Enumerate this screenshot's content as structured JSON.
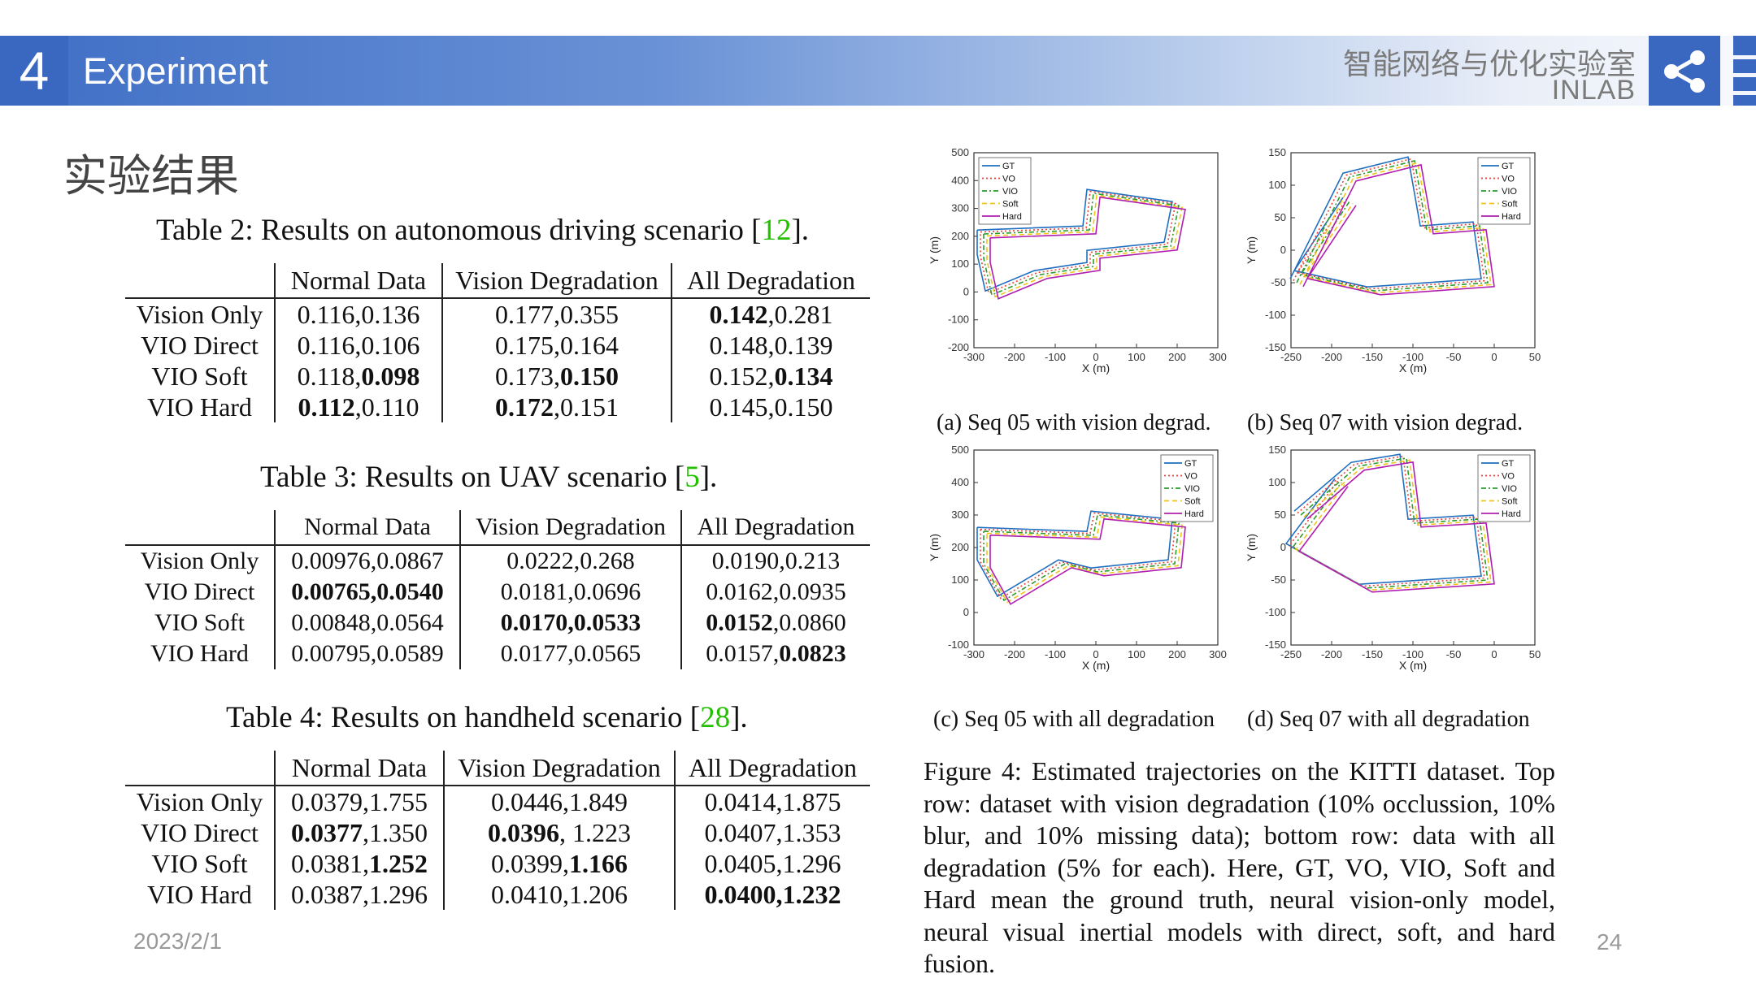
{
  "header": {
    "section_number": "4",
    "section_title": "Experiment",
    "lab_name_cn": "智能网络与优化实验室",
    "lab_name_en": "INLAB",
    "share_icon": "share-icon",
    "accent_color": "#3a67c0"
  },
  "subtitle": "实验结果",
  "tables": [
    {
      "caption_prefix": "Table 2: Results on autonomous driving scenario [",
      "caption_ref": "12",
      "caption_suffix": "].",
      "columns": [
        "",
        "Normal Data",
        "Vision Degradation",
        "All Degradation"
      ],
      "rows": [
        {
          "label": "Vision Only",
          "cells": [
            [
              {
                "t": "0.116,0.136"
              }
            ],
            [
              {
                "t": "0.177,0.355"
              }
            ],
            [
              {
                "t": "0.142",
                "b": true
              },
              {
                "t": ",0.281"
              }
            ]
          ]
        },
        {
          "label": "VIO Direct",
          "cells": [
            [
              {
                "t": "0.116,0.106"
              }
            ],
            [
              {
                "t": "0.175,0.164"
              }
            ],
            [
              {
                "t": "0.148,0.139"
              }
            ]
          ]
        },
        {
          "label": "VIO Soft",
          "cells": [
            [
              {
                "t": "0.118,"
              },
              {
                "t": "0.098",
                "b": true
              }
            ],
            [
              {
                "t": "0.173,"
              },
              {
                "t": "0.150",
                "b": true
              }
            ],
            [
              {
                "t": "0.152,"
              },
              {
                "t": "0.134",
                "b": true
              }
            ]
          ]
        },
        {
          "label": "VIO Hard",
          "cells": [
            [
              {
                "t": "0.112",
                "b": true
              },
              {
                "t": ",0.110"
              }
            ],
            [
              {
                "t": "0.172",
                "b": true
              },
              {
                "t": ",0.151"
              }
            ],
            [
              {
                "t": "0.145,0.150"
              }
            ]
          ]
        }
      ]
    },
    {
      "caption_prefix": "Table 3: Results on UAV scenario [",
      "caption_ref": "5",
      "caption_suffix": "].",
      "columns": [
        "",
        "Normal Data",
        "Vision Degradation",
        "All Degradation"
      ],
      "rows": [
        {
          "label": "Vision Only",
          "cells": [
            [
              {
                "t": "0.00976,0.0867"
              }
            ],
            [
              {
                "t": "0.0222,0.268"
              }
            ],
            [
              {
                "t": "0.0190,0.213"
              }
            ]
          ]
        },
        {
          "label": "VIO Direct",
          "cells": [
            [
              {
                "t": "0.00765,0.0540",
                "b": true
              }
            ],
            [
              {
                "t": "0.0181,0.0696"
              }
            ],
            [
              {
                "t": "0.0162,0.0935"
              }
            ]
          ]
        },
        {
          "label": "VIO Soft",
          "cells": [
            [
              {
                "t": "0.00848,0.0564"
              }
            ],
            [
              {
                "t": "0.0170,0.0533",
                "b": true
              }
            ],
            [
              {
                "t": "0.0152",
                "b": true
              },
              {
                "t": ",0.0860"
              }
            ]
          ]
        },
        {
          "label": "VIO Hard",
          "cells": [
            [
              {
                "t": "0.00795,0.0589"
              }
            ],
            [
              {
                "t": "0.0177,0.0565"
              }
            ],
            [
              {
                "t": "0.0157,"
              },
              {
                "t": "0.0823",
                "b": true
              }
            ]
          ]
        }
      ]
    },
    {
      "caption_prefix": "Table 4: Results on handheld scenario [",
      "caption_ref": "28",
      "caption_suffix": "].",
      "columns": [
        "",
        "Normal Data",
        "Vision Degradation",
        "All Degradation"
      ],
      "rows": [
        {
          "label": "Vision Only",
          "cells": [
            [
              {
                "t": "0.0379,1.755"
              }
            ],
            [
              {
                "t": "0.0446,1.849"
              }
            ],
            [
              {
                "t": "0.0414,1.875"
              }
            ]
          ]
        },
        {
          "label": "VIO Direct",
          "cells": [
            [
              {
                "t": "0.0377",
                "b": true
              },
              {
                "t": ",1.350"
              }
            ],
            [
              {
                "t": "0.0396",
                "b": true
              },
              {
                "t": ", 1.223"
              }
            ],
            [
              {
                "t": "0.0407,1.353"
              }
            ]
          ]
        },
        {
          "label": "VIO Soft",
          "cells": [
            [
              {
                "t": "0.0381,"
              },
              {
                "t": "1.252",
                "b": true
              }
            ],
            [
              {
                "t": "0.0399,"
              },
              {
                "t": "1.166",
                "b": true
              }
            ],
            [
              {
                "t": "0.0405,1.296"
              }
            ]
          ]
        },
        {
          "label": "VIO Hard",
          "cells": [
            [
              {
                "t": "0.0387,1.296"
              }
            ],
            [
              {
                "t": "0.0410,1.206"
              }
            ],
            [
              {
                "t": "0.0400,1.232",
                "b": true
              }
            ]
          ]
        }
      ]
    }
  ],
  "plots": [
    {
      "caption": "(a)  Seq 05 with vision degrad.",
      "xlabel": "X (m)",
      "ylabel": "Y (m)",
      "xlim": [
        -300,
        300
      ],
      "ylim": [
        -200,
        500
      ],
      "xticks": [
        "-300",
        "-200",
        "-100",
        "0",
        "100",
        "200",
        "300"
      ],
      "yticks": [
        "500",
        "400",
        "300",
        "200",
        "100",
        "0",
        "-100",
        "-200"
      ],
      "legend_pos": "top-left"
    },
    {
      "caption": "(b)  Seq 07 with vision degrad.",
      "xlabel": "X (m)",
      "ylabel": "Y (m)",
      "xlim": [
        -250,
        50
      ],
      "ylim": [
        -150,
        150
      ],
      "xticks": [
        "-250",
        "-200",
        "-150",
        "-100",
        "-50",
        "0",
        "50"
      ],
      "yticks": [
        "150",
        "100",
        "50",
        "0",
        "-50",
        "-100",
        "-150"
      ],
      "legend_pos": "top-right"
    },
    {
      "caption": "(c)  Seq 05 with all degradation",
      "xlabel": "X (m)",
      "ylabel": "Y (m)",
      "xlim": [
        -300,
        300
      ],
      "ylim": [
        -100,
        500
      ],
      "xticks": [
        "-300",
        "-200",
        "-100",
        "0",
        "100",
        "200",
        "300"
      ],
      "yticks": [
        "500",
        "400",
        "300",
        "200",
        "100",
        "0",
        "-100"
      ],
      "legend_pos": "top-right"
    },
    {
      "caption": "(d)  Seq 07 with all degradation",
      "xlabel": "X (m)",
      "ylabel": "Y (m)",
      "xlim": [
        -250,
        50
      ],
      "ylim": [
        -150,
        150
      ],
      "xticks": [
        "-250",
        "-200",
        "-150",
        "-100",
        "-50",
        "0",
        "50"
      ],
      "yticks": [
        "150",
        "100",
        "50",
        "0",
        "-50",
        "-100",
        "-150"
      ],
      "legend_pos": "top-right"
    }
  ],
  "legend": [
    {
      "name": "GT",
      "color": "#1f6fc0",
      "dash": ""
    },
    {
      "name": "VO",
      "color": "#e8423a",
      "dash": "2,3"
    },
    {
      "name": "VIO",
      "color": "#2a9d2a",
      "dash": "6,3,2,3"
    },
    {
      "name": "Soft",
      "color": "#f0c419",
      "dash": "6,4"
    },
    {
      "name": "Hard",
      "color": "#b01eb0",
      "dash": ""
    }
  ],
  "figure_caption": "Figure 4:  Estimated trajectories on the KITTI dataset. Top row: dataset with vision degradation (10% occlussion, 10% blur, and 10% missing data); bottom row: data with all degradation (5% for each). Here, GT, VO, VIO, Soft and Hard mean the ground truth, neural vision-only model, neural visual inertial models with direct, soft, and hard fusion.",
  "footer": {
    "date": "2023/2/1",
    "page": "24"
  }
}
